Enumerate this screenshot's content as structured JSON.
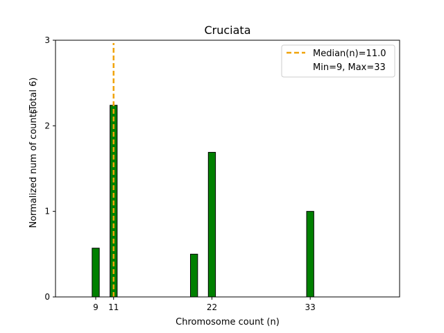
{
  "chart_data": {
    "type": "bar",
    "title": "Cruciata",
    "xlabel": "Chromosome count (n)",
    "ylabel": "Normalized num of counts",
    "ylabel_note": "(Total 6)",
    "xlim": [
      4.5,
      43
    ],
    "ylim": [
      0,
      3
    ],
    "x_ticks": [
      9,
      11,
      22,
      33
    ],
    "y_ticks": [
      0,
      1,
      2,
      3
    ],
    "bar_color": "#008000",
    "bar_edge_color": "#000000",
    "bars": [
      {
        "x": 9,
        "value": 0.57
      },
      {
        "x": 11,
        "value": 2.24
      },
      {
        "x": 20,
        "value": 0.5
      },
      {
        "x": 22,
        "value": 1.69
      },
      {
        "x": 33,
        "value": 1.0
      }
    ],
    "bar_width": 0.8,
    "median": {
      "x": 11.0,
      "color": "#f0a30a",
      "style": "dashed"
    },
    "legend": {
      "position": "top-right",
      "entries": [
        "Median(n)=11.0",
        "Min=9, Max=33"
      ]
    },
    "grid": false
  }
}
